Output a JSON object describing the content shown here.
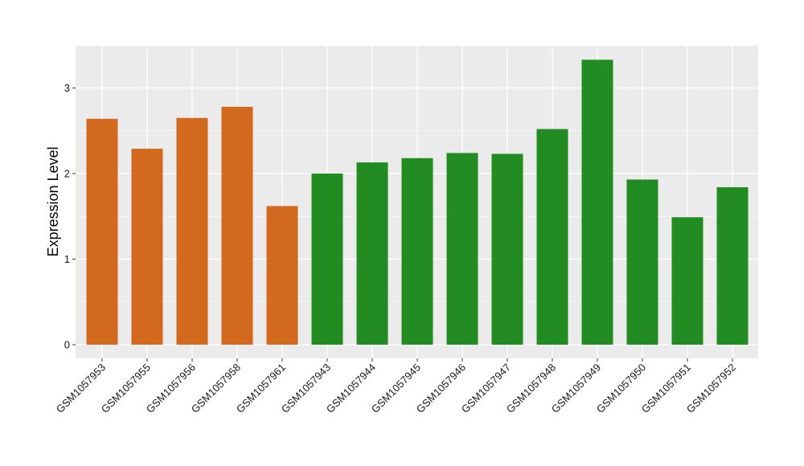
{
  "chart_data": {
    "type": "bar",
    "title": "",
    "xlabel": "",
    "ylabel": "Expression Level",
    "ylim": [
      0,
      3.5
    ],
    "yticks": [
      0,
      1,
      2,
      3
    ],
    "grid": true,
    "legend": "none",
    "categories": [
      "GSM1057953",
      "GSM1057955",
      "GSM1057956",
      "GSM1057958",
      "GSM1057961",
      "GSM1057943",
      "GSM1057944",
      "GSM1057945",
      "GSM1057946",
      "GSM1057947",
      "GSM1057948",
      "GSM1057949",
      "GSM1057950",
      "GSM1057951",
      "GSM1057952"
    ],
    "values": [
      2.64,
      2.29,
      2.65,
      2.78,
      1.62,
      2.0,
      2.13,
      2.18,
      2.24,
      2.23,
      2.52,
      3.33,
      1.93,
      1.49,
      1.84
    ],
    "groups": [
      "a",
      "a",
      "a",
      "a",
      "a",
      "b",
      "b",
      "b",
      "b",
      "b",
      "b",
      "b",
      "b",
      "b",
      "b"
    ],
    "colors": {
      "a": "#D2691E",
      "b": "#228B22"
    },
    "panel_background": "#EBEBEB",
    "grid_color": "#FFFFFF"
  }
}
